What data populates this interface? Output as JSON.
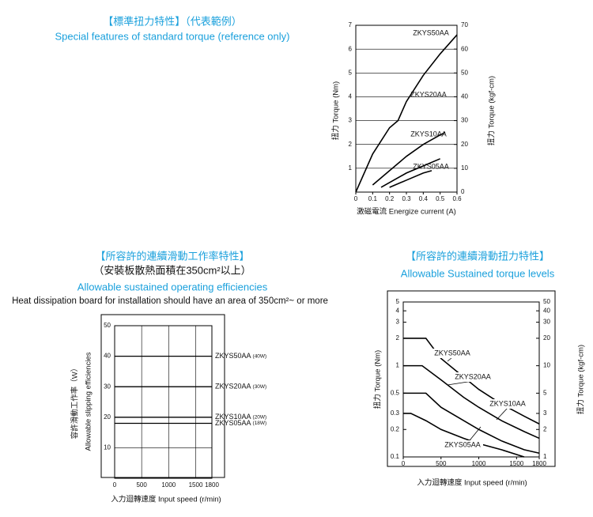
{
  "chart_data": [
    {
      "type": "line",
      "title": "【標準扭力特性】（代表範例）",
      "subtitle": "Special features of standard torque  (reference only)",
      "xlabel": "激磁電流 Energize current (A)",
      "ylabel": "扭力 Torque (Nm)",
      "y2label": "扭力 Torque (kgf-cm)",
      "xlim": [
        0,
        0.6
      ],
      "xticks": [
        0,
        0.1,
        0.2,
        0.3,
        0.4,
        0.5,
        0.6
      ],
      "ylim": [
        0,
        7
      ],
      "yticks": [
        1,
        2,
        3,
        4,
        5,
        6,
        7
      ],
      "y2lim": [
        0,
        70
      ],
      "y2ticks": [
        0,
        10,
        20,
        30,
        40,
        50,
        60,
        70
      ],
      "grid": true,
      "series": [
        {
          "name": "ZKYS50AA",
          "color": "#000000",
          "x": [
            0,
            0.1,
            0.2,
            0.25,
            0.3,
            0.4,
            0.5,
            0.6
          ],
          "values": [
            0,
            1.6,
            2.7,
            3.0,
            3.8,
            4.9,
            5.8,
            6.6
          ]
        },
        {
          "name": "ZKYS20AA",
          "color": "#000000",
          "x": [
            0.1,
            0.2,
            0.3,
            0.4,
            0.5,
            0.53
          ],
          "values": [
            0.3,
            0.9,
            1.5,
            2.0,
            2.4,
            2.5
          ]
        },
        {
          "name": "ZKYS10AA",
          "color": "#000000",
          "x": [
            0.15,
            0.3,
            0.4,
            0.5
          ],
          "values": [
            0.2,
            0.8,
            1.1,
            1.4
          ]
        },
        {
          "name": "ZKYS05AA",
          "color": "#000000",
          "x": [
            0.2,
            0.3,
            0.4,
            0.45
          ],
          "values": [
            0.2,
            0.5,
            0.8,
            0.9
          ]
        }
      ]
    },
    {
      "type": "line",
      "title": "【所容許的連續滑動工作率特性】",
      "subtitle": "（安裝板散熱面積在350cm²以上）",
      "subtitle2": "Allowable sustained operating efficiencies",
      "note": "Heat dissipation board for installation should have an area of 350cm²~ or more",
      "xlabel": "入力迴轉速度 Input speed (r/min)",
      "ylabel": "容許滑動工作率（W）",
      "ylabel2": "Allowable slipping efficiencies",
      "xlim": [
        0,
        1800
      ],
      "xticks": [
        0,
        500,
        1000,
        1500,
        1800
      ],
      "ylim": [
        0,
        50
      ],
      "yticks": [
        10,
        20,
        30,
        40,
        50
      ],
      "grid": true,
      "series": [
        {
          "name": "ZKYS50AA",
          "label": "(40W)",
          "color": "#000000",
          "x": [
            0,
            1800
          ],
          "values": [
            40,
            40
          ]
        },
        {
          "name": "ZKYS20AA",
          "label": "(30W)",
          "color": "#000000",
          "x": [
            0,
            1800
          ],
          "values": [
            30,
            30
          ]
        },
        {
          "name": "ZKYS10AA",
          "label": "(20W)",
          "color": "#000000",
          "x": [
            0,
            1800
          ],
          "values": [
            20,
            20
          ]
        },
        {
          "name": "ZKYS05AA",
          "label": "(18W)",
          "color": "#000000",
          "x": [
            0,
            1800
          ],
          "values": [
            18,
            18
          ]
        }
      ]
    },
    {
      "type": "line",
      "title": "【所容許的連續滑動扭力特性】",
      "subtitle": "Allowable Sustained torque levels",
      "xlabel": "入力迴轉速度 Input speed (r/min)",
      "ylabel": "扭力 Torque (Nm)",
      "y2label": "扭力 Torque (kgf-cm)",
      "xlim": [
        0,
        1800
      ],
      "xticks": [
        0,
        500,
        1000,
        1500,
        1800
      ],
      "ylim": [
        0.1,
        5
      ],
      "yticks": [
        0.1,
        0.2,
        0.3,
        0.5,
        1,
        2,
        3,
        4,
        5
      ],
      "y2lim": [
        1,
        50
      ],
      "y2ticks": [
        1,
        2,
        3,
        5,
        10,
        20,
        30,
        40,
        50
      ],
      "log": true,
      "grid": false,
      "series": [
        {
          "name": "ZKYS50AA",
          "color": "#000000",
          "x": [
            0,
            300,
            500,
            800,
            1000,
            1300,
            1600,
            1800
          ],
          "values": [
            2,
            2,
            1.2,
            0.75,
            0.55,
            0.38,
            0.28,
            0.23
          ]
        },
        {
          "name": "ZKYS20AA",
          "color": "#000000",
          "x": [
            0,
            250,
            500,
            800,
            1000,
            1300,
            1600,
            1800
          ],
          "values": [
            1,
            1,
            0.7,
            0.45,
            0.35,
            0.25,
            0.19,
            0.16
          ]
        },
        {
          "name": "ZKYS10AA",
          "color": "#000000",
          "x": [
            0,
            300,
            500,
            800,
            1000,
            1300,
            1600,
            1800
          ],
          "values": [
            0.5,
            0.5,
            0.35,
            0.25,
            0.2,
            0.15,
            0.12,
            0.11
          ]
        },
        {
          "name": "ZKYS05AA",
          "color": "#000000",
          "x": [
            0,
            100,
            300,
            500,
            800,
            1000,
            1300,
            1600
          ],
          "values": [
            0.3,
            0.3,
            0.25,
            0.2,
            0.16,
            0.14,
            0.12,
            0.1
          ]
        }
      ]
    }
  ]
}
